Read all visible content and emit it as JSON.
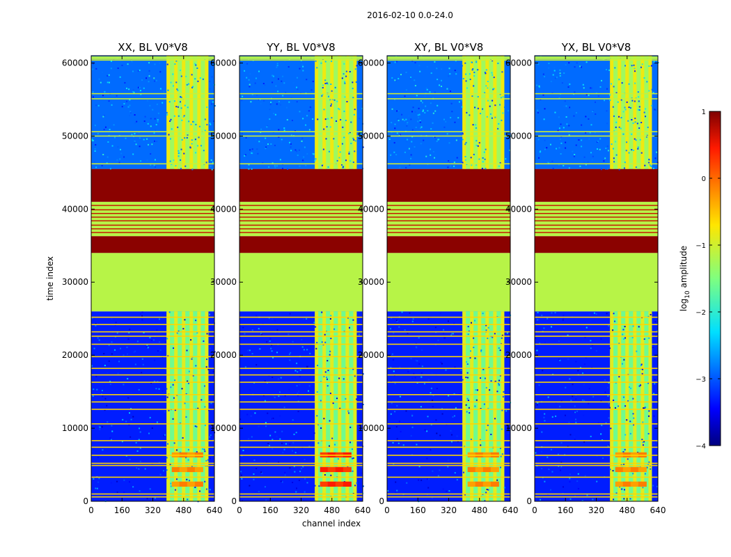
{
  "figure": {
    "suptitle": "2016-02-10 0.0-24.0",
    "xlabel": "channel index",
    "ylabel": "time index"
  },
  "chart_data": {
    "type": "heatmap",
    "colormap": "jet",
    "x_range": [
      0,
      640
    ],
    "y_range": [
      0,
      61000
    ],
    "xticks": [
      0,
      160,
      320,
      480,
      640
    ],
    "yticks": [
      0,
      10000,
      20000,
      30000,
      40000,
      50000,
      60000
    ],
    "panels": [
      {
        "title": "XX, BL V0*V8"
      },
      {
        "title": "YY, BL V0*V8"
      },
      {
        "title": "XY, BL V0*V8"
      },
      {
        "title": "YX, BL V0*V8"
      }
    ],
    "colorbar": {
      "label_main": "log",
      "label_sub": "10",
      "label_rest": " amplitude",
      "range": [
        -4,
        1
      ],
      "ticks": [
        1,
        0,
        -1,
        -2,
        -3,
        -4
      ],
      "tick_labels": [
        "1",
        "0",
        "−1",
        "−2",
        "−3",
        "−4"
      ]
    },
    "bands": [
      {
        "y0": 0,
        "y1": 26000,
        "level": -3.3,
        "note": "low-amplitude noise, RFI band channels 400-600 brighter"
      },
      {
        "y0": 26000,
        "y1": 34000,
        "level": -1.15,
        "note": "uniform"
      },
      {
        "y0": 34000,
        "y1": 36300,
        "level": 0.95,
        "note": "saturated"
      },
      {
        "y0": 36300,
        "y1": 41000,
        "level": -1.15,
        "note": "striped"
      },
      {
        "y0": 41000,
        "y1": 45500,
        "level": 0.95,
        "note": "saturated"
      },
      {
        "y0": 45500,
        "y1": 61000,
        "level": -2.9,
        "note": "noise, RFI band channels 400-600 brighter"
      }
    ],
    "rfi_channel_band": [
      400,
      600
    ]
  }
}
